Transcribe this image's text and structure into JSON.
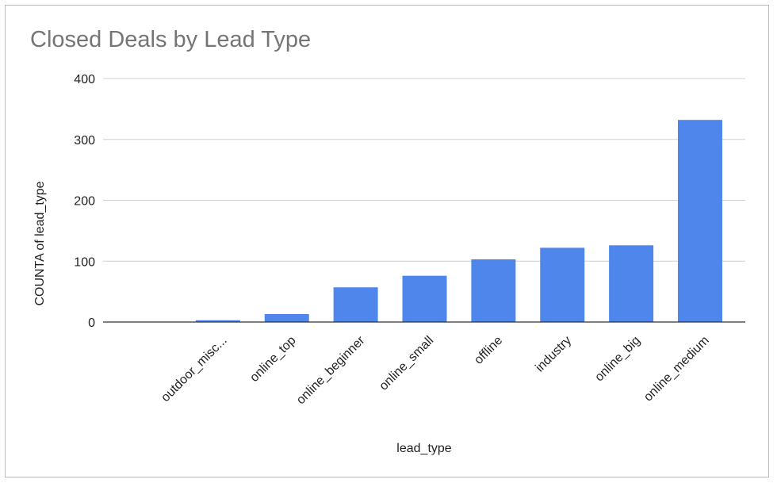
{
  "chart_data": {
    "type": "bar",
    "title": "Closed Deals by Lead Type",
    "xlabel": "lead_type",
    "ylabel": "COUNTA of lead_type",
    "categories": [
      "",
      "outdoor_misc...",
      "online_top",
      "online_beginner",
      "online_small",
      "offline",
      "industry",
      "online_big",
      "online_medium"
    ],
    "values": [
      0,
      3,
      13,
      57,
      76,
      103,
      122,
      126,
      332
    ],
    "ylim": [
      0,
      400
    ],
    "yticks": [
      0,
      100,
      200,
      300,
      400
    ],
    "grid": true,
    "legend": "none",
    "bar_color": "#4f86ec"
  }
}
